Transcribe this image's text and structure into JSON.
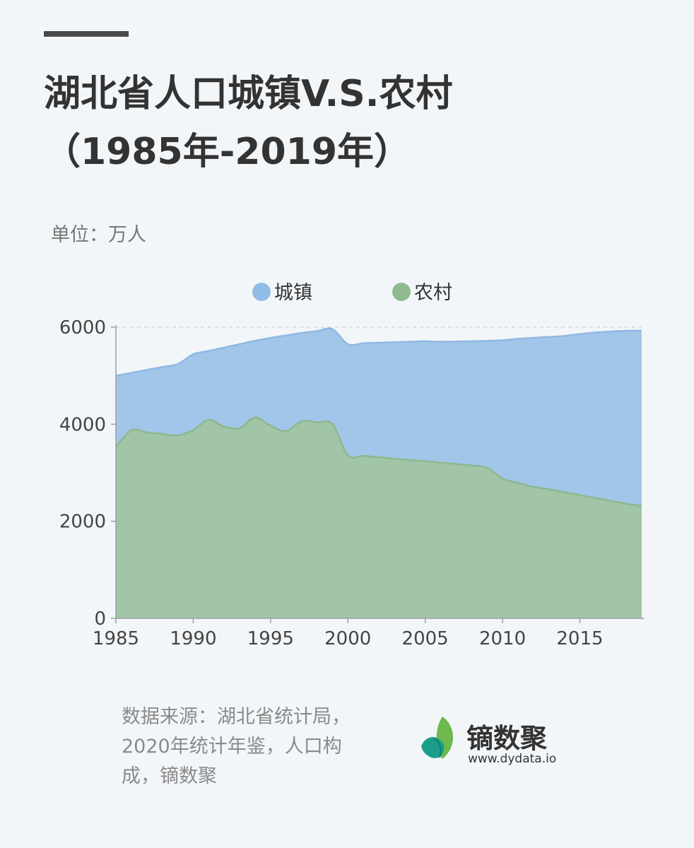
{
  "title_line1": "湖北省人口城镇V.S.农村",
  "title_line2": "（1985年-2019年）",
  "unit": "单位：万人",
  "source": "数据来源：湖北省统计局，2020年统计年鉴，人口构成，镝数聚",
  "brand": {
    "name": "镝数聚",
    "url": "www.dydata.io"
  },
  "colors": {
    "urban": "#9dc3e8",
    "urban_line": "#8fb8e2",
    "rural": "#a2c4a3",
    "rural_line": "#8cb88d"
  },
  "chart_data": {
    "type": "area",
    "x": [
      1985,
      1986,
      1987,
      1988,
      1989,
      1990,
      1991,
      1992,
      1993,
      1994,
      1995,
      1996,
      1997,
      1998,
      1999,
      2000,
      2001,
      2002,
      2003,
      2004,
      2005,
      2006,
      2007,
      2008,
      2009,
      2010,
      2011,
      2012,
      2013,
      2014,
      2015,
      2016,
      2017,
      2018,
      2019
    ],
    "series": [
      {
        "name": "城镇",
        "values": [
          5000,
          5060,
          5120,
          5180,
          5240,
          5440,
          5510,
          5580,
          5650,
          5720,
          5780,
          5830,
          5880,
          5920,
          5960,
          5650,
          5670,
          5680,
          5690,
          5700,
          5710,
          5700,
          5705,
          5710,
          5720,
          5730,
          5760,
          5780,
          5800,
          5820,
          5860,
          5890,
          5910,
          5925,
          5930
        ]
      },
      {
        "name": "农村",
        "values": [
          3530,
          3880,
          3830,
          3800,
          3770,
          3880,
          4090,
          3950,
          3920,
          4140,
          3970,
          3860,
          4060,
          4040,
          4000,
          3360,
          3350,
          3320,
          3290,
          3260,
          3240,
          3210,
          3180,
          3150,
          3100,
          2880,
          2790,
          2710,
          2660,
          2600,
          2540,
          2480,
          2420,
          2360,
          2320
        ]
      }
    ],
    "xticks": [
      1985,
      1990,
      1995,
      2000,
      2005,
      2010,
      2015
    ],
    "yticks": [
      0,
      2000,
      4000,
      6000
    ],
    "ylim": [
      0,
      6000
    ],
    "xlim": [
      1985,
      2019
    ],
    "legend": "top-center",
    "grid": "horizontal dashed"
  }
}
